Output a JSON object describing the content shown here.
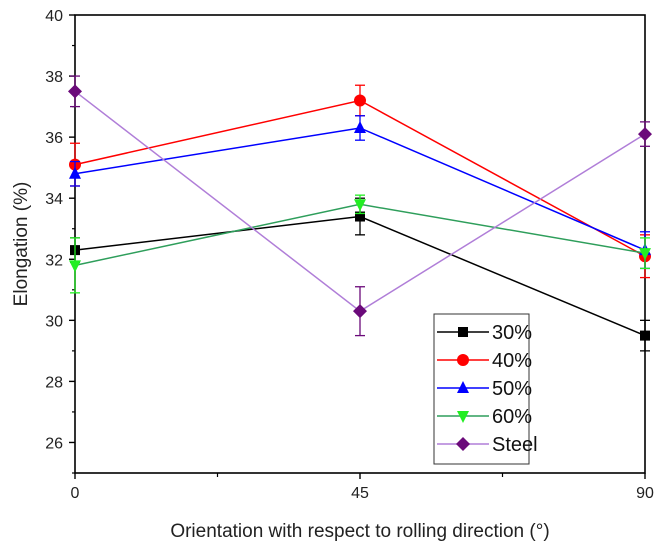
{
  "chart_data": {
    "type": "line",
    "title": "",
    "xlabel": "Orientation with respect to rolling direction (°)",
    "ylabel": "Elongation (%)",
    "x": [
      0,
      45,
      90
    ],
    "xlim": [
      0,
      90
    ],
    "ylim": [
      25,
      40
    ],
    "xticks": [
      0,
      45,
      90
    ],
    "xtick_labels": [
      "0",
      "45",
      "90"
    ],
    "xminor_ticks": [
      22.5,
      67.5
    ],
    "yticks": [
      26,
      28,
      30,
      32,
      34,
      36,
      38,
      40
    ],
    "ytick_labels": [
      "26",
      "28",
      "30",
      "32",
      "34",
      "36",
      "38",
      "40"
    ],
    "yminor_ticks": [
      25,
      27,
      29,
      31,
      33,
      35,
      37,
      39
    ],
    "grid": false,
    "legend_position": "bottom-right",
    "series": [
      {
        "name": "30%",
        "values": [
          32.3,
          33.4,
          29.5
        ],
        "errors": [
          0.4,
          0.6,
          0.5
        ],
        "line_color": "#000000",
        "marker_color": "#000000",
        "marker": "square"
      },
      {
        "name": "40%",
        "values": [
          35.1,
          37.2,
          32.1
        ],
        "errors": [
          0.7,
          0.5,
          0.7
        ],
        "line_color": "#ff0000",
        "marker_color": "#ff0000",
        "marker": "circle"
      },
      {
        "name": "50%",
        "values": [
          34.8,
          36.3,
          32.3
        ],
        "errors": [
          0.4,
          0.4,
          0.6
        ],
        "line_color": "#0000ff",
        "marker_color": "#0000ff",
        "marker": "triangle-up"
      },
      {
        "name": "60%",
        "values": [
          31.8,
          33.8,
          32.2
        ],
        "errors": [
          0.9,
          0.3,
          0.5
        ],
        "line_color": "#2e9e5b",
        "marker_color": "#22ee22",
        "marker": "triangle-down"
      },
      {
        "name": "Steel",
        "values": [
          37.5,
          30.3,
          36.1
        ],
        "errors": [
          0.5,
          0.8,
          0.4
        ],
        "line_color": "#b07ed8",
        "marker_color": "#6b0a7a",
        "marker": "diamond"
      }
    ]
  }
}
